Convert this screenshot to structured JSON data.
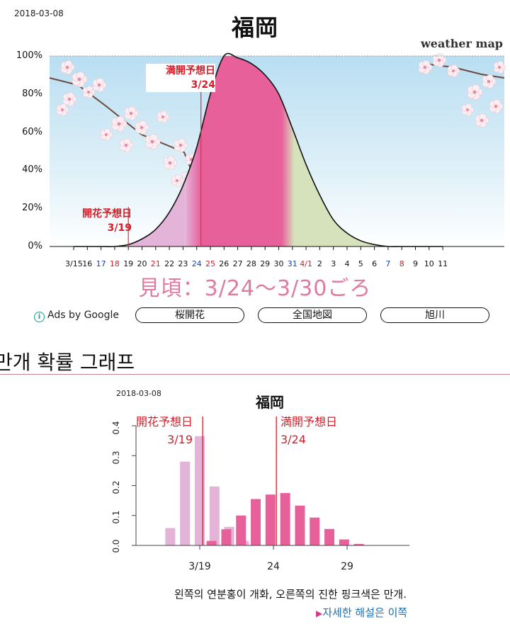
{
  "top": {
    "date": "2018-03-08",
    "title": "福岡",
    "brand": "weather map",
    "ann_full": [
      "満開予想日",
      "3/24"
    ],
    "ann_open": [
      "開花予想日",
      "3/19"
    ],
    "mikoro": "見頃：3/24～3/30ごろ"
  },
  "ads": {
    "label": "Ads by Google",
    "links": [
      "桜開花",
      "全国地図",
      "旭川"
    ]
  },
  "section_title": "만개 확률 그래프",
  "bottom": {
    "date": "2018-03-08",
    "title": "福岡",
    "ann_open": [
      "開花予想日",
      "3/19"
    ],
    "ann_full": [
      "満開予想日",
      "3/24"
    ],
    "caption": "왼쪽의 연분홍이 개화, 오른쪽의 진한 핑크색은 만개.",
    "link": "자세한 해설은 이쪽"
  },
  "colors": {
    "light_pink": "#e3b3d8",
    "deep_pink": "#e8609a",
    "green": "#d6e2bc",
    "red_line": "#e0303a",
    "sky": "#cfe8f5"
  },
  "chart_data": [
    {
      "type": "area",
      "title": "福岡",
      "ylabel": "",
      "xlabel": "",
      "ylim": [
        0,
        100
      ],
      "y_ticks": [
        "0%",
        "20%",
        "40%",
        "60%",
        "80%",
        "100%"
      ],
      "x_ticks": [
        "3/15",
        "16",
        "17",
        "18",
        "19",
        "20",
        "21",
        "22",
        "23",
        "24",
        "25",
        "26",
        "27",
        "28",
        "29",
        "30",
        "31",
        "4/1",
        "2",
        "3",
        "4",
        "5",
        "6",
        "7",
        "8",
        "9",
        "10",
        "11"
      ],
      "x_tick_colors": [
        "#111",
        "#111",
        "#1a3fa8",
        "#d0202a",
        "#111",
        "#111",
        "#d0202a",
        "#111",
        "#111",
        "#1a3fa8",
        "#d0202a",
        "#111",
        "#111",
        "#111",
        "#111",
        "#111",
        "#1a3fa8",
        "#d0202a",
        "#111",
        "#111",
        "#111",
        "#111",
        "#111",
        "#1a3fa8",
        "#d0202a",
        "#111",
        "#111",
        "#111"
      ],
      "series": [
        {
          "values": [
            0,
            0,
            0,
            0,
            1,
            4,
            9,
            18,
            32,
            52,
            80,
            100,
            99,
            96,
            90,
            80,
            62,
            43,
            27,
            14,
            7,
            3,
            1,
            0,
            0,
            0,
            0,
            0
          ]
        }
      ],
      "markers": [
        {
          "label": "開花予想日 3/19",
          "x": "19"
        },
        {
          "label": "満開予想日 3/24",
          "x": "24"
        }
      ],
      "bands": [
        {
          "from": "19",
          "to": "24",
          "color": "light"
        },
        {
          "from": "24",
          "to": "30",
          "color": "deep"
        },
        {
          "from": "30",
          "to": "4/1+",
          "color": "green"
        }
      ]
    },
    {
      "type": "bar",
      "title": "福岡",
      "ylim": [
        0,
        0.4
      ],
      "y_ticks": [
        "0.0",
        "0.1",
        "0.2",
        "0.3",
        "0.4"
      ],
      "x_ticks": [
        "3/19",
        "24",
        "29"
      ],
      "series": [
        {
          "days": [
            17,
            18,
            19,
            20,
            21,
            22
          ],
          "values": [
            0.058,
            0.28,
            0.365,
            0.197,
            0.062,
            0.015
          ]
        },
        {
          "days": [
            19.8,
            20.8,
            21.8,
            22.8,
            23.8,
            24.8,
            25.8,
            26.8,
            27.8,
            28.8,
            29.8
          ],
          "values": [
            0.015,
            0.054,
            0.1,
            0.155,
            0.17,
            0.175,
            0.133,
            0.093,
            0.055,
            0.02,
            0.005
          ]
        }
      ],
      "markers": [
        {
          "label": "開花予想日 3/19",
          "x": 19.2
        },
        {
          "label": "満開予想日 3/24",
          "x": 24.2
        }
      ]
    }
  ]
}
